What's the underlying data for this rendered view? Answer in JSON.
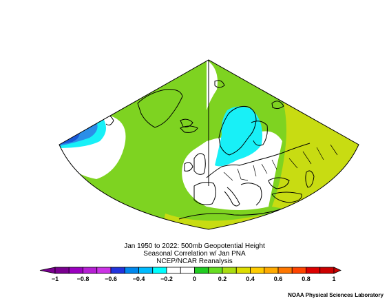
{
  "title": {
    "line1": "Jan 1950 to 2022: 500mb Geopotential Height",
    "line2": "Seasonal Correlation w/ Jan PNA",
    "line3": "NCEP/NCAR Reanalysis"
  },
  "colorbar": {
    "min": -1,
    "max": 1,
    "tick_labels": [
      "−1",
      "−0.8",
      "−0.6",
      "−0.4",
      "−0.2",
      "0",
      "0.2",
      "0.4",
      "0.6",
      "0.8",
      "1"
    ],
    "colors": [
      "#7a0090",
      "#9b00c0",
      "#b61fd4",
      "#cc33e6",
      "#2233dd",
      "#0088ee",
      "#00bbff",
      "#00ffff",
      "#ffffff",
      "#ffffff",
      "#22cc22",
      "#66dd22",
      "#aadd11",
      "#dddd00",
      "#ffcc00",
      "#ffaa00",
      "#ff7700",
      "#ff4400",
      "#dd0000",
      "#cc0000"
    ]
  },
  "map": {
    "region": "North Atlantic / Europe",
    "projection": "conic sector",
    "shading": {
      "positive_weak": "#7ed321",
      "positive_moderate": "#c8dc12",
      "neutral": "#ffffff",
      "negative_weak": "#18f0f7",
      "negative_moderate": "#2b8ee8",
      "negative_strong": "#1a57d6"
    }
  },
  "credit": "NOAA Physical Sciences Laboratory"
}
